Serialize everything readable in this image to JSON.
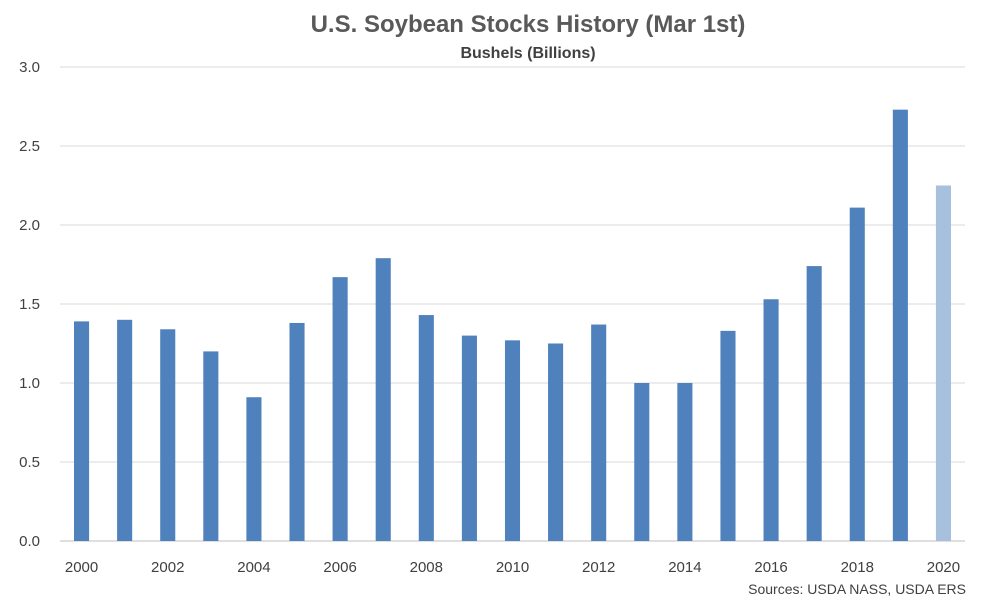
{
  "chart_data": {
    "type": "bar",
    "title": "U.S. Soybean Stocks History (Mar 1st)",
    "subtitle": "Bushels (Billions)",
    "source": "Sources: USDA NASS, USDA ERS",
    "categories": [
      "2000",
      "2001",
      "2002",
      "2003",
      "2004",
      "2005",
      "2006",
      "2007",
      "2008",
      "2009",
      "2010",
      "2011",
      "2012",
      "2013",
      "2014",
      "2015",
      "2016",
      "2017",
      "2018",
      "2019",
      "2020"
    ],
    "x_tick_labels": [
      "2000",
      "2002",
      "2004",
      "2006",
      "2008",
      "2010",
      "2012",
      "2014",
      "2016",
      "2018",
      "2020"
    ],
    "values": [
      1.39,
      1.4,
      1.34,
      1.2,
      0.91,
      1.38,
      1.67,
      1.79,
      1.43,
      1.3,
      1.27,
      1.25,
      1.37,
      1.0,
      1.0,
      1.33,
      1.53,
      1.74,
      2.11,
      2.73,
      2.25
    ],
    "ylim": [
      0,
      3.0
    ],
    "y_ticks": [
      "0.0",
      "0.5",
      "1.0",
      "1.5",
      "2.0",
      "2.5",
      "3.0"
    ],
    "grid": true,
    "colors": {
      "bar": "#4f81bd",
      "bar_highlight": "#a7c0de"
    },
    "highlight_category": "2020"
  }
}
